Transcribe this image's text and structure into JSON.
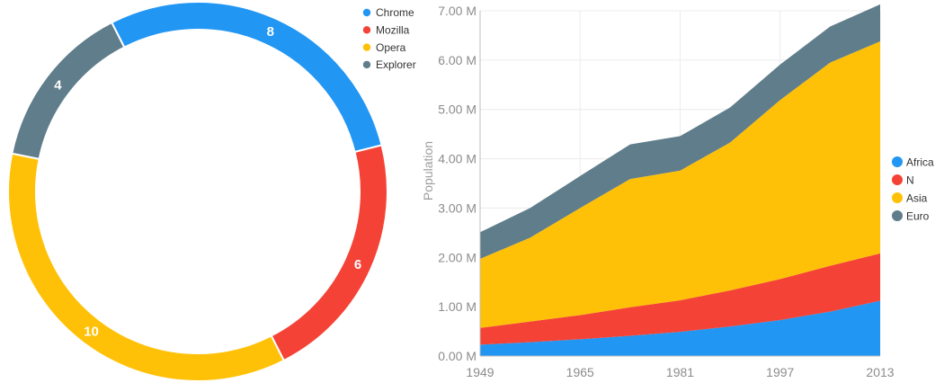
{
  "chart_data": [
    {
      "type": "pie",
      "variant": "doughnut",
      "categories": [
        "Chrome",
        "Mozilla",
        "Opera",
        "Explorer"
      ],
      "values": [
        8,
        6,
        10,
        4
      ],
      "colors": [
        "#2196F3",
        "#F44336",
        "#FFC107",
        "#607D8B"
      ],
      "legend": "top-right"
    },
    {
      "type": "area",
      "stacked": true,
      "x": [
        1949,
        1957,
        1965,
        1973,
        1981,
        1989,
        1997,
        2005,
        2013
      ],
      "series": [
        {
          "name": "Africa",
          "color": "#2196F3",
          "values": [
            0.23,
            0.28,
            0.34,
            0.41,
            0.49,
            0.6,
            0.73,
            0.9,
            1.12
          ]
        },
        {
          "name": "N",
          "color": "#F44336",
          "values": [
            0.34,
            0.42,
            0.49,
            0.58,
            0.64,
            0.73,
            0.83,
            0.93,
            0.96
          ]
        },
        {
          "name": "Asia",
          "color": "#FFC107",
          "values": [
            1.4,
            1.7,
            2.17,
            2.6,
            2.63,
            3.0,
            3.63,
            4.12,
            4.3
          ]
        },
        {
          "name": "Euro",
          "color": "#607D8B",
          "values": [
            0.54,
            0.6,
            0.65,
            0.7,
            0.7,
            0.71,
            0.72,
            0.73,
            0.75
          ]
        }
      ],
      "x_ticks": [
        "1949",
        "1965",
        "1981",
        "1997",
        "2013"
      ],
      "y_ticks": [
        "0.00 M",
        "1.00 M",
        "2.00 M",
        "3.00 M",
        "4.00 M",
        "5.00 M",
        "6.00 M",
        "7.00 M"
      ],
      "ylabel": "Population",
      "xlabel": "",
      "ylim": [
        0,
        7
      ],
      "xlim": [
        1949,
        2013
      ],
      "grid": true,
      "legend": "right"
    }
  ]
}
